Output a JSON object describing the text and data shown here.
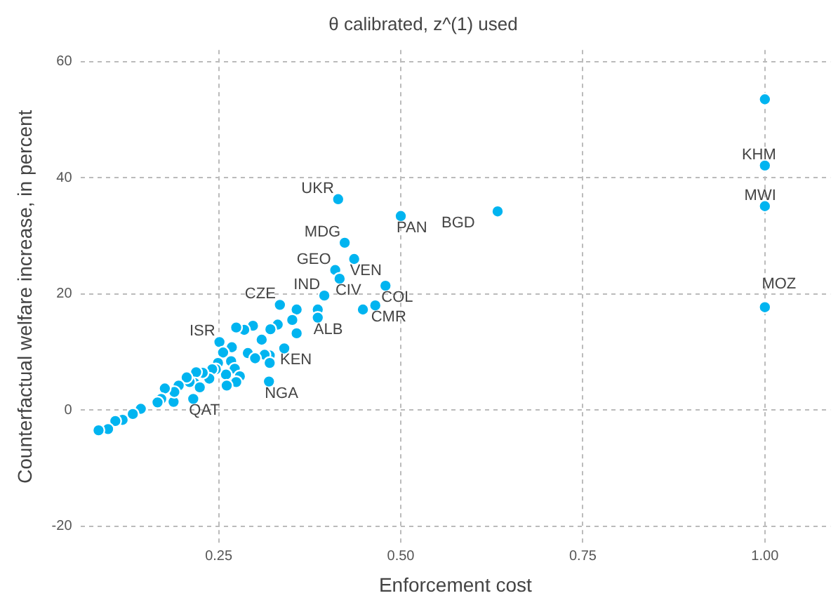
{
  "chart_data": {
    "type": "scatter",
    "title": "θ calibrated, z^(1) used",
    "xlabel": "Enforcement cost",
    "ylabel": "Counterfactual welfare increase, in percent",
    "series": [
      {
        "color": "#00b4f0",
        "x": [
          1.0,
          1.0,
          1.0,
          1.0,
          0.633,
          0.5,
          0.414,
          0.423,
          0.436,
          0.41,
          0.416,
          0.395,
          0.479,
          0.465,
          0.448,
          0.334,
          0.357,
          0.386,
          0.386,
          0.357,
          0.351,
          0.331,
          0.321,
          0.297,
          0.285,
          0.274,
          0.251,
          0.309,
          0.34,
          0.32,
          0.313,
          0.32,
          0.319,
          0.29,
          0.3,
          0.268,
          0.256,
          0.267,
          0.272,
          0.279,
          0.274,
          0.26,
          0.261,
          0.249,
          0.246,
          0.241,
          0.237,
          0.228,
          0.219,
          0.217,
          0.21,
          0.206,
          0.224,
          0.215,
          0.195,
          0.188,
          0.189,
          0.176,
          0.171,
          0.166,
          0.143,
          0.132,
          0.118,
          0.108,
          0.098,
          0.085
        ],
        "values": [
          53.5,
          42.1,
          35.1,
          17.7,
          34.2,
          33.4,
          36.3,
          28.8,
          26.0,
          24.1,
          22.6,
          19.7,
          21.4,
          18.0,
          17.3,
          18.1,
          17.3,
          17.3,
          15.9,
          13.2,
          15.5,
          14.7,
          13.9,
          14.5,
          13.8,
          14.2,
          11.7,
          12.1,
          10.6,
          9.4,
          9.5,
          8.1,
          4.9,
          9.8,
          8.9,
          10.8,
          9.9,
          8.4,
          7.1,
          5.8,
          4.8,
          6.1,
          4.2,
          8.1,
          7.0,
          7.0,
          5.4,
          6.4,
          6.5,
          4.6,
          4.8,
          5.6,
          3.9,
          1.9,
          4.2,
          1.4,
          3.1,
          3.7,
          1.9,
          1.3,
          0.2,
          -0.7,
          -1.7,
          -1.9,
          -3.3,
          -3.5
        ]
      }
    ],
    "annotations": [
      {
        "text": "UKR",
        "x": 0.414,
        "y": 36.3
      },
      {
        "text": "MDG",
        "x": 0.423,
        "y": 28.8
      },
      {
        "text": "GEO",
        "x": 0.41,
        "y": 24.1
      },
      {
        "text": "IND",
        "x": 0.395,
        "y": 19.7
      },
      {
        "text": "CZE",
        "x": 0.334,
        "y": 18.1
      },
      {
        "text": "ISR",
        "x": 0.251,
        "y": 11.7
      },
      {
        "text": "KHM",
        "x": 1.0,
        "y": 42.1
      },
      {
        "text": "MWI",
        "x": 1.0,
        "y": 35.1
      },
      {
        "text": "PAN",
        "x": 0.5,
        "y": 33.4
      },
      {
        "text": "BGD",
        "x": 0.633,
        "y": 34.2
      },
      {
        "text": "VEN",
        "x": 0.436,
        "y": 26.0
      },
      {
        "text": "CIV",
        "x": 0.416,
        "y": 22.6
      },
      {
        "text": "COL",
        "x": 0.479,
        "y": 21.4
      },
      {
        "text": "CMR",
        "x": 0.465,
        "y": 18.0
      },
      {
        "text": "ALB",
        "x": 0.386,
        "y": 15.9
      },
      {
        "text": "KEN",
        "x": 0.34,
        "y": 10.6
      },
      {
        "text": "NGA",
        "x": 0.319,
        "y": 4.9
      },
      {
        "text": "QAT",
        "x": 0.215,
        "y": 1.9
      },
      {
        "text": "MOZ",
        "x": 1.0,
        "y": 17.7
      }
    ],
    "xlim": [
      0.06,
      1.09
    ],
    "xticks": [
      0.25,
      {
        "value": 0.5,
        "label": "0.50"
      },
      0.75,
      {
        "value": 1.0,
        "label": "1.00"
      }
    ],
    "ylim": [
      -23,
      62
    ],
    "yticks": [
      -20,
      0,
      20,
      40,
      60
    ],
    "grid": true,
    "marker": "circle",
    "legend": false
  }
}
